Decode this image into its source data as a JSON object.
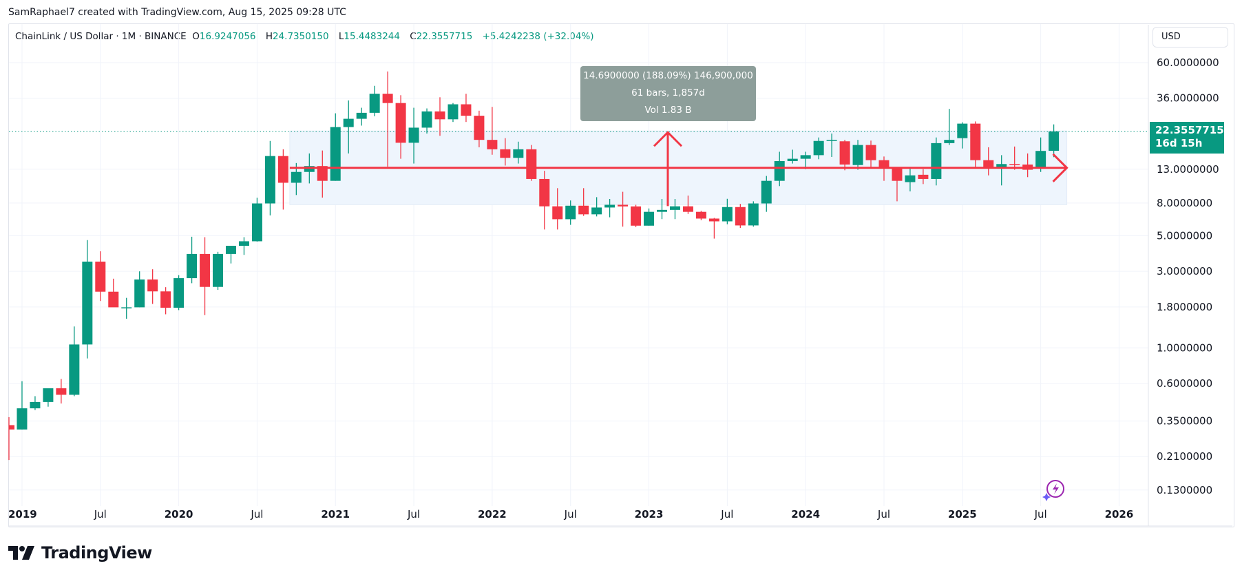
{
  "credit": "SamRaphael7 created with TradingView.com, Aug 15, 2025 09:28 UTC",
  "legend": {
    "symbol": "ChainLink / US Dollar · 1M · BINANCE",
    "o_label": "O",
    "o_value": "16.9247056",
    "h_label": "H",
    "h_value": "24.7350150",
    "l_label": "L",
    "l_value": "15.4483244",
    "c_label": "C",
    "c_value": "22.3557715",
    "change": "+5.4242238 (+32.04%)"
  },
  "currency": "USD",
  "price_tag": {
    "price": "22.3557715",
    "countdown": "16d 15h"
  },
  "tooltip": {
    "line1": "14.6900000 (188.09%) 146,900,000",
    "line2": "61 bars, 1,857d",
    "line3": "Vol 1.83 B"
  },
  "branding": "TradingView",
  "colors": {
    "up": "#089981",
    "down": "#f23645",
    "measure": "#f23645",
    "measure_fill": "#eef5fd",
    "price_line": "#089981"
  },
  "chart_data": {
    "type": "candlestick",
    "title": "ChainLink / US Dollar · 1M · BINANCE",
    "yscale": "log",
    "ylim": [
      0.13,
      60
    ],
    "y_ticks": [
      "60.0000000",
      "36.0000000",
      "13.0000000",
      "8.0000000",
      "5.0000000",
      "3.0000000",
      "1.8000000",
      "1.0000000",
      "0.6000000",
      "0.3500000",
      "0.2100000",
      "0.1300000"
    ],
    "y_tick_values": [
      60,
      36,
      13,
      8,
      5,
      3,
      1.8,
      1.0,
      0.6,
      0.35,
      0.21,
      0.13
    ],
    "x_ticks": [
      {
        "label": "2019",
        "month_index": 1,
        "year": true
      },
      {
        "label": "Jul",
        "month_index": 7,
        "year": false
      },
      {
        "label": "2020",
        "month_index": 13,
        "year": true
      },
      {
        "label": "Jul",
        "month_index": 19,
        "year": false
      },
      {
        "label": "2021",
        "month_index": 25,
        "year": true
      },
      {
        "label": "Jul",
        "month_index": 31,
        "year": false
      },
      {
        "label": "2022",
        "month_index": 37,
        "year": true
      },
      {
        "label": "Jul",
        "month_index": 43,
        "year": false
      },
      {
        "label": "2023",
        "month_index": 49,
        "year": true
      },
      {
        "label": "Jul",
        "month_index": 55,
        "year": false
      },
      {
        "label": "2024",
        "month_index": 61,
        "year": true
      },
      {
        "label": "Jul",
        "month_index": 67,
        "year": false
      },
      {
        "label": "2025",
        "month_index": 73,
        "year": true
      },
      {
        "label": "Jul",
        "month_index": 79,
        "year": false
      },
      {
        "label": "2026",
        "month_index": 85,
        "year": true
      }
    ],
    "first_month": "2018-12",
    "candles": [
      {
        "t": "2018-12",
        "o": 0.33,
        "h": 0.37,
        "l": 0.2,
        "c": 0.31
      },
      {
        "t": "2019-01",
        "o": 0.31,
        "h": 0.62,
        "l": 0.31,
        "c": 0.42
      },
      {
        "t": "2019-02",
        "o": 0.42,
        "h": 0.5,
        "l": 0.41,
        "c": 0.46
      },
      {
        "t": "2019-03",
        "o": 0.46,
        "h": 0.55,
        "l": 0.43,
        "c": 0.56
      },
      {
        "t": "2019-04",
        "o": 0.56,
        "h": 0.64,
        "l": 0.45,
        "c": 0.51
      },
      {
        "t": "2019-05",
        "o": 0.51,
        "h": 1.36,
        "l": 0.5,
        "c": 1.05
      },
      {
        "t": "2019-06",
        "o": 1.05,
        "h": 4.7,
        "l": 0.86,
        "c": 3.45
      },
      {
        "t": "2019-07",
        "o": 3.45,
        "h": 4.0,
        "l": 1.96,
        "c": 2.24
      },
      {
        "t": "2019-08",
        "o": 2.24,
        "h": 2.7,
        "l": 1.84,
        "c": 1.79
      },
      {
        "t": "2019-09",
        "o": 1.79,
        "h": 2.05,
        "l": 1.52,
        "c": 1.79
      },
      {
        "t": "2019-10",
        "o": 1.79,
        "h": 3.0,
        "l": 1.79,
        "c": 2.67
      },
      {
        "t": "2019-11",
        "o": 2.67,
        "h": 3.09,
        "l": 1.88,
        "c": 2.25
      },
      {
        "t": "2019-12",
        "o": 2.25,
        "h": 2.39,
        "l": 1.62,
        "c": 1.78
      },
      {
        "t": "2020-01",
        "o": 1.78,
        "h": 2.84,
        "l": 1.72,
        "c": 2.72
      },
      {
        "t": "2020-02",
        "o": 2.72,
        "h": 4.93,
        "l": 2.53,
        "c": 3.85
      },
      {
        "t": "2020-03",
        "o": 3.85,
        "h": 4.9,
        "l": 1.6,
        "c": 2.4
      },
      {
        "t": "2020-04",
        "o": 2.4,
        "h": 3.97,
        "l": 2.3,
        "c": 3.85
      },
      {
        "t": "2020-05",
        "o": 3.85,
        "h": 4.1,
        "l": 3.36,
        "c": 4.33
      },
      {
        "t": "2020-06",
        "o": 4.33,
        "h": 4.9,
        "l": 3.8,
        "c": 4.62
      },
      {
        "t": "2020-07",
        "o": 4.62,
        "h": 8.63,
        "l": 4.6,
        "c": 7.95
      },
      {
        "t": "2020-08",
        "o": 7.95,
        "h": 19.5,
        "l": 6.7,
        "c": 15.7
      },
      {
        "t": "2020-09",
        "o": 15.7,
        "h": 17.3,
        "l": 7.28,
        "c": 10.7
      },
      {
        "t": "2020-10",
        "o": 10.7,
        "h": 14.2,
        "l": 8.97,
        "c": 12.5
      },
      {
        "t": "2020-11",
        "o": 12.5,
        "h": 16.3,
        "l": 10.6,
        "c": 13.6
      },
      {
        "t": "2020-12",
        "o": 13.6,
        "h": 17.0,
        "l": 8.65,
        "c": 11.0
      },
      {
        "t": "2021-01",
        "o": 11.0,
        "h": 29.0,
        "l": 11.0,
        "c": 23.8
      },
      {
        "t": "2021-02",
        "o": 23.8,
        "h": 34.9,
        "l": 16.3,
        "c": 26.8
      },
      {
        "t": "2021-03",
        "o": 26.8,
        "h": 31.4,
        "l": 24.3,
        "c": 29.2
      },
      {
        "t": "2021-04",
        "o": 29.2,
        "h": 43.0,
        "l": 27.8,
        "c": 38.4
      },
      {
        "t": "2021-05",
        "o": 38.4,
        "h": 52.9,
        "l": 13.5,
        "c": 33.6
      },
      {
        "t": "2021-06",
        "o": 33.6,
        "h": 37.6,
        "l": 15.1,
        "c": 19.0
      },
      {
        "t": "2021-07",
        "o": 19.0,
        "h": 31.4,
        "l": 14.1,
        "c": 23.6
      },
      {
        "t": "2021-08",
        "o": 23.6,
        "h": 31.1,
        "l": 21.7,
        "c": 29.8
      },
      {
        "t": "2021-09",
        "o": 29.8,
        "h": 36.5,
        "l": 21.0,
        "c": 26.6
      },
      {
        "t": "2021-10",
        "o": 26.6,
        "h": 33.6,
        "l": 25.6,
        "c": 33.0
      },
      {
        "t": "2021-11",
        "o": 33.0,
        "h": 38.4,
        "l": 25.6,
        "c": 28.0
      },
      {
        "t": "2021-12",
        "o": 28.0,
        "h": 30.1,
        "l": 17.8,
        "c": 19.8
      },
      {
        "t": "2022-01",
        "o": 19.8,
        "h": 31.8,
        "l": 16.0,
        "c": 17.3
      },
      {
        "t": "2022-02",
        "o": 17.3,
        "h": 20.3,
        "l": 13.7,
        "c": 15.3
      },
      {
        "t": "2022-03",
        "o": 15.3,
        "h": 19.3,
        "l": 14.1,
        "c": 17.3
      },
      {
        "t": "2022-04",
        "o": 17.3,
        "h": 18.4,
        "l": 11.0,
        "c": 11.3
      },
      {
        "t": "2022-05",
        "o": 11.3,
        "h": 12.7,
        "l": 5.47,
        "c": 7.63
      },
      {
        "t": "2022-06",
        "o": 7.63,
        "h": 9.9,
        "l": 5.47,
        "c": 6.34
      },
      {
        "t": "2022-07",
        "o": 6.34,
        "h": 8.3,
        "l": 5.85,
        "c": 7.7
      },
      {
        "t": "2022-08",
        "o": 7.7,
        "h": 9.9,
        "l": 6.65,
        "c": 6.8
      },
      {
        "t": "2022-09",
        "o": 6.8,
        "h": 8.7,
        "l": 6.6,
        "c": 7.5
      },
      {
        "t": "2022-10",
        "o": 7.5,
        "h": 8.48,
        "l": 6.52,
        "c": 7.8
      },
      {
        "t": "2022-11",
        "o": 7.8,
        "h": 9.4,
        "l": 5.7,
        "c": 7.62
      },
      {
        "t": "2022-12",
        "o": 7.62,
        "h": 7.8,
        "l": 5.66,
        "c": 5.78
      },
      {
        "t": "2023-01",
        "o": 5.78,
        "h": 7.4,
        "l": 5.78,
        "c": 7.05
      },
      {
        "t": "2023-02",
        "o": 7.05,
        "h": 8.48,
        "l": 6.35,
        "c": 7.25
      },
      {
        "t": "2023-03",
        "o": 7.25,
        "h": 8.48,
        "l": 6.35,
        "c": 7.63
      },
      {
        "t": "2023-04",
        "o": 7.63,
        "h": 8.9,
        "l": 6.84,
        "c": 7.05
      },
      {
        "t": "2023-05",
        "o": 7.05,
        "h": 7.15,
        "l": 6.25,
        "c": 6.4
      },
      {
        "t": "2023-06",
        "o": 6.4,
        "h": 6.46,
        "l": 4.8,
        "c": 6.15
      },
      {
        "t": "2023-07",
        "o": 6.15,
        "h": 8.5,
        "l": 5.9,
        "c": 7.55
      },
      {
        "t": "2023-08",
        "o": 7.55,
        "h": 7.9,
        "l": 5.6,
        "c": 5.8
      },
      {
        "t": "2023-09",
        "o": 5.8,
        "h": 8.2,
        "l": 5.7,
        "c": 7.95
      },
      {
        "t": "2023-10",
        "o": 7.95,
        "h": 11.8,
        "l": 7.05,
        "c": 11.0
      },
      {
        "t": "2023-11",
        "o": 11.0,
        "h": 16.7,
        "l": 10.2,
        "c": 14.6
      },
      {
        "t": "2023-12",
        "o": 14.6,
        "h": 17.2,
        "l": 14.1,
        "c": 15.1
      },
      {
        "t": "2024-01",
        "o": 15.1,
        "h": 16.7,
        "l": 13.0,
        "c": 15.9
      },
      {
        "t": "2024-02",
        "o": 15.9,
        "h": 20.5,
        "l": 15.0,
        "c": 19.5
      },
      {
        "t": "2024-03",
        "o": 19.5,
        "h": 21.7,
        "l": 15.5,
        "c": 19.8
      },
      {
        "t": "2024-04",
        "o": 19.4,
        "h": 19.8,
        "l": 12.8,
        "c": 13.9
      },
      {
        "t": "2024-05",
        "o": 13.8,
        "h": 19.8,
        "l": 12.9,
        "c": 18.4
      },
      {
        "t": "2024-06",
        "o": 18.4,
        "h": 19.6,
        "l": 13.4,
        "c": 14.8
      },
      {
        "t": "2024-07",
        "o": 14.8,
        "h": 15.6,
        "l": 11.0,
        "c": 13.1
      },
      {
        "t": "2024-08",
        "o": 13.1,
        "h": 13.4,
        "l": 8.2,
        "c": 11.0
      },
      {
        "t": "2024-09",
        "o": 10.8,
        "h": 13.4,
        "l": 9.45,
        "c": 11.9
      },
      {
        "t": "2024-10",
        "o": 12.0,
        "h": 13.0,
        "l": 10.5,
        "c": 11.3
      },
      {
        "t": "2024-11",
        "o": 11.3,
        "h": 20.5,
        "l": 10.3,
        "c": 18.9
      },
      {
        "t": "2024-12",
        "o": 18.9,
        "h": 30.9,
        "l": 18.4,
        "c": 19.8
      },
      {
        "t": "2025-01",
        "o": 20.3,
        "h": 25.5,
        "l": 17.5,
        "c": 25.0
      },
      {
        "t": "2025-02",
        "o": 25.0,
        "h": 25.8,
        "l": 13.3,
        "c": 14.8
      },
      {
        "t": "2025-03",
        "o": 14.8,
        "h": 17.8,
        "l": 11.9,
        "c": 13.2
      },
      {
        "t": "2025-04",
        "o": 13.2,
        "h": 15.9,
        "l": 10.3,
        "c": 14.0
      },
      {
        "t": "2025-05",
        "o": 14.0,
        "h": 18.0,
        "l": 12.9,
        "c": 13.9
      },
      {
        "t": "2025-06",
        "o": 13.9,
        "h": 16.3,
        "l": 11.6,
        "c": 12.9
      },
      {
        "t": "2025-07",
        "o": 13.2,
        "h": 20.5,
        "l": 12.5,
        "c": 16.9
      },
      {
        "t": "2025-08",
        "o": 16.9247056,
        "h": 24.735015,
        "l": 15.4483244,
        "c": 22.3557715
      }
    ],
    "last_price": 22.3557715,
    "measure": {
      "from_month": "2020-09",
      "to_month": "2025-09",
      "low": 7.81,
      "high": 22.5,
      "change": 14.69,
      "change_pct": 188.09,
      "bars": 61,
      "days": 1857,
      "volume": "1.83 B"
    }
  }
}
